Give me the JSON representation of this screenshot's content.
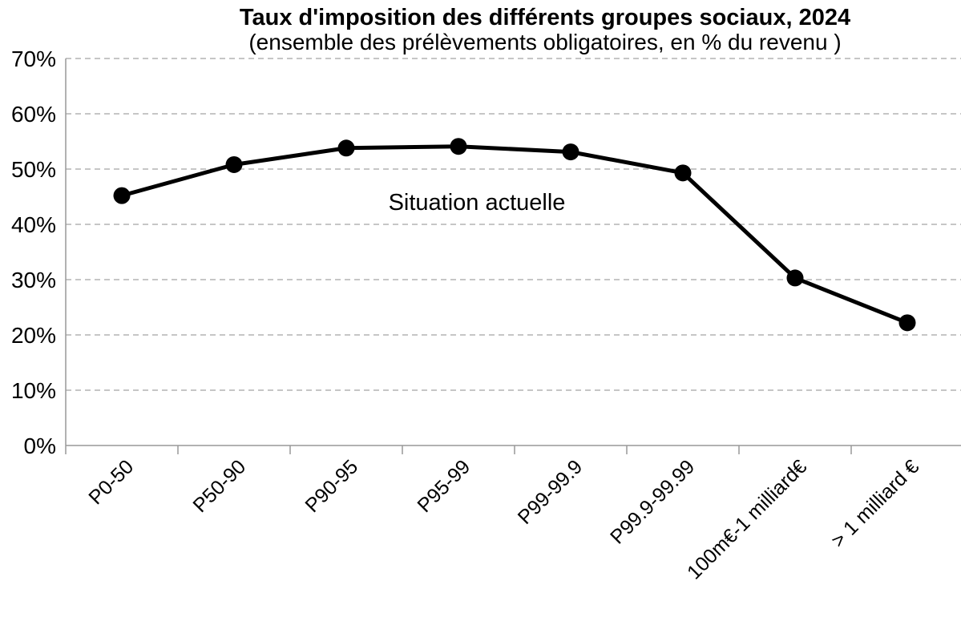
{
  "chart_data": {
    "type": "line",
    "title": "Taux d'imposition des différents groupes sociaux, 2024",
    "subtitle": "(ensemble des prélèvements obligatoires, en % du revenu )",
    "annotation": "Situation actuelle",
    "categories": [
      "P0-50",
      "P50-90",
      "P90-95",
      "P95-99",
      "P99-99.9",
      "P99.9-99.99",
      "100m€-1 milliard€",
      "> 1 milliard €"
    ],
    "series": [
      {
        "name": "Situation actuelle",
        "values": [
          45.2,
          50.8,
          53.8,
          54.1,
          53.1,
          49.3,
          30.3,
          22.2
        ]
      }
    ],
    "xlabel": "",
    "ylabel": "",
    "ylim": [
      0,
      70
    ],
    "ytick_step": 10,
    "ytick_labels": [
      "0%",
      "10%",
      "20%",
      "30%",
      "40%",
      "50%",
      "60%",
      "70%"
    ],
    "grid": "horizontal-dashed",
    "legend_position": "none",
    "line_color": "#000000",
    "marker_color": "#000000",
    "axis_color": "#999999",
    "grid_color": "#b3b3b3",
    "text_color": "#000000"
  }
}
